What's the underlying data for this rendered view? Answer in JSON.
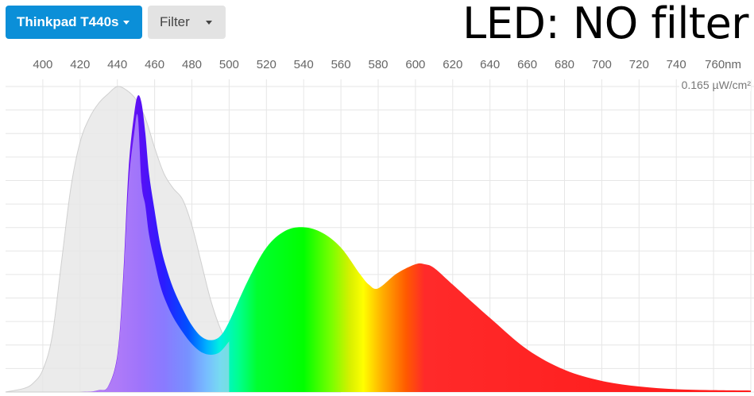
{
  "toolbar": {
    "device_label": "Thinkpad T440s",
    "filter_label": "Filter"
  },
  "title": "LED: NO filter",
  "colors": {
    "primary_button": "#0b8fd8",
    "default_button": "#e3e3e3",
    "reference_fill": "#e8e8e8",
    "grid": "#e6e6e6"
  },
  "chart_data": {
    "type": "area",
    "title": "LED: NO filter",
    "xlabel": "",
    "ylabel": "",
    "x_unit": "nm",
    "y_max_label": "0.165 µW/cm²",
    "x_ticks": [
      "400",
      "420",
      "440",
      "460",
      "480",
      "500",
      "520",
      "540",
      "560",
      "580",
      "600",
      "620",
      "640",
      "660",
      "680",
      "700",
      "720",
      "740",
      "760nm"
    ],
    "xlim": [
      380,
      780
    ],
    "ylim": [
      0,
      0.165
    ],
    "grid": true,
    "series": [
      {
        "role": "reference",
        "x": [
          380,
          390,
          395,
          400,
          405,
          410,
          415,
          420,
          425,
          430,
          435,
          440,
          445,
          450,
          455,
          460,
          465,
          470,
          475,
          480,
          485,
          490,
          495,
          500,
          510,
          520,
          540,
          560
        ],
        "values": [
          0,
          0.002,
          0.005,
          0.012,
          0.03,
          0.07,
          0.11,
          0.135,
          0.148,
          0.156,
          0.161,
          0.165,
          0.163,
          0.158,
          0.148,
          0.132,
          0.118,
          0.11,
          0.104,
          0.09,
          0.07,
          0.05,
          0.035,
          0.025,
          0.012,
          0.006,
          0.002,
          0
        ]
      },
      {
        "role": "current",
        "x": [
          380,
          420,
          430,
          435,
          440,
          443,
          446,
          449,
          451,
          453,
          455,
          457,
          460,
          463,
          466,
          470,
          475,
          480,
          485,
          490,
          495,
          500,
          510,
          520,
          530,
          540,
          550,
          560,
          570,
          575,
          580,
          590,
          600,
          605,
          610,
          620,
          640,
          660,
          680,
          700,
          720,
          740,
          760,
          780
        ],
        "values": [
          0,
          0,
          0.001,
          0.003,
          0.02,
          0.06,
          0.12,
          0.15,
          0.16,
          0.156,
          0.14,
          0.118,
          0.098,
          0.08,
          0.068,
          0.056,
          0.045,
          0.036,
          0.03,
          0.028,
          0.03,
          0.038,
          0.06,
          0.078,
          0.087,
          0.089,
          0.086,
          0.078,
          0.064,
          0.058,
          0.056,
          0.064,
          0.069,
          0.069,
          0.067,
          0.058,
          0.04,
          0.023,
          0.012,
          0.006,
          0.003,
          0.0015,
          0.001,
          0.0008
        ]
      }
    ]
  }
}
